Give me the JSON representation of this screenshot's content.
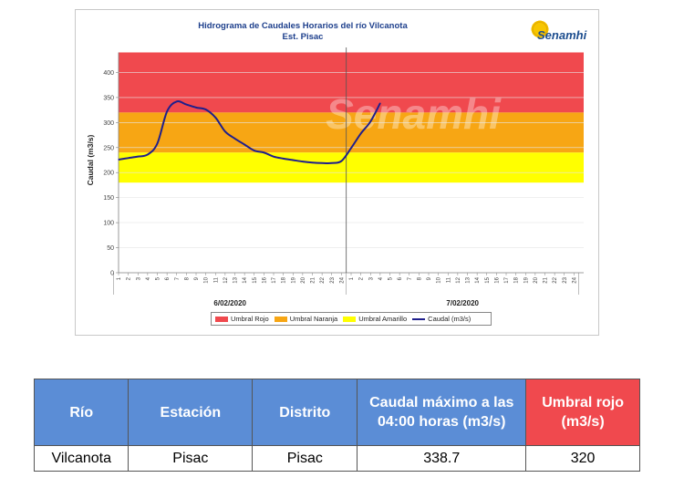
{
  "chart_data": {
    "type": "line",
    "title": "Hidrograma de Caudales Horarios del río Vilcanota",
    "subtitle": "Est. Pisac",
    "ylabel": "Caudal (m3/s)",
    "xlabel": "",
    "ylim": [
      0,
      450
    ],
    "yticks": [
      0,
      50,
      100,
      150,
      200,
      250,
      300,
      350,
      400
    ],
    "days": [
      "6/02/2020",
      "7/02/2020"
    ],
    "hours_per_day": 24,
    "grid": true,
    "legend_position": "bottom",
    "thresholds": [
      {
        "name": "Umbral Rojo",
        "from": 320,
        "to": 440,
        "color": "#f0494e"
      },
      {
        "name": "Umbral Naranja",
        "from": 240,
        "to": 320,
        "color": "#f7a614"
      },
      {
        "name": "Umbral Amarillo",
        "from": 180,
        "to": 240,
        "color": "#ffff00"
      }
    ],
    "series": [
      {
        "name": "Caudal (m3/s)",
        "color": "#1f1f8c",
        "day": [
          "6/02/2020",
          "6/02/2020",
          "6/02/2020",
          "6/02/2020",
          "6/02/2020",
          "6/02/2020",
          "6/02/2020",
          "6/02/2020",
          "6/02/2020",
          "6/02/2020",
          "6/02/2020",
          "6/02/2020",
          "6/02/2020",
          "6/02/2020",
          "6/02/2020",
          "6/02/2020",
          "6/02/2020",
          "6/02/2020",
          "6/02/2020",
          "6/02/2020",
          "6/02/2020",
          "6/02/2020",
          "6/02/2020",
          "6/02/2020",
          "7/02/2020",
          "7/02/2020",
          "7/02/2020",
          "7/02/2020"
        ],
        "hour": [
          1,
          2,
          3,
          4,
          5,
          6,
          7,
          8,
          9,
          10,
          11,
          12,
          13,
          14,
          15,
          16,
          17,
          18,
          19,
          20,
          21,
          22,
          23,
          24,
          1,
          2,
          3,
          4
        ],
        "values": [
          226,
          229,
          232,
          236,
          258,
          322,
          342,
          336,
          330,
          326,
          310,
          282,
          268,
          256,
          244,
          240,
          232,
          228,
          225,
          222,
          220,
          219,
          219,
          223,
          249,
          278,
          302,
          338.7
        ]
      }
    ],
    "watermark": "Senamhi"
  },
  "logo_text": "Senamhi",
  "table": {
    "headers": [
      "Río",
      "Estación",
      "Distrito",
      "Caudal máximo a las 04:00 horas (m3/s)",
      "Umbral rojo (m3/s)"
    ],
    "header_colors": [
      "#5b8dd6",
      "#5b8dd6",
      "#5b8dd6",
      "#5b8dd6",
      "#f0494e"
    ],
    "row": [
      "Vilcanota",
      "Pisac",
      "Pisac",
      "338.7",
      "320"
    ]
  }
}
